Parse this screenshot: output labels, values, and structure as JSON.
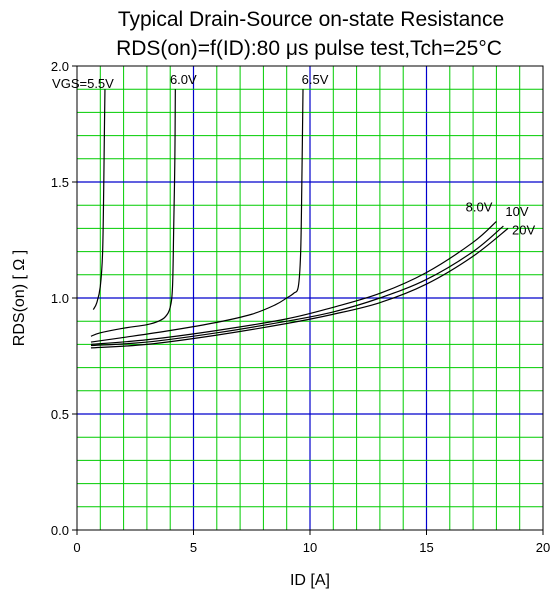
{
  "chart_data": {
    "type": "line",
    "title": "Typical Drain-Source on-state Resistance",
    "subtitle": "RDS(on)=f(ID):80 μs pulse test,Tch=25°C",
    "xlabel": "ID [A]",
    "ylabel": "RDS(on) [ Ω ]",
    "xlim": [
      0,
      20
    ],
    "ylim": [
      0.0,
      2.0
    ],
    "x_ticks": [
      "0",
      "5",
      "10",
      "15",
      "20"
    ],
    "y_ticks": [
      "0.0",
      "0.5",
      "1.0",
      "1.5",
      "2.0"
    ],
    "grid": true,
    "colors": {
      "minor_grid": "#00cc00",
      "major_grid": "#0000cc",
      "curve": "#000000",
      "axis": "#000000"
    },
    "series": [
      {
        "name": "VGS=5.5V",
        "x": [
          0.7,
          0.85,
          1.0,
          1.1,
          1.15,
          1.18,
          1.2
        ],
        "y": [
          0.95,
          0.98,
          1.05,
          1.2,
          1.5,
          1.75,
          1.9
        ]
      },
      {
        "name": "6.0V",
        "x": [
          0.6,
          1.0,
          2.0,
          3.0,
          3.5,
          3.8,
          4.0,
          4.1,
          4.15,
          4.2,
          4.22
        ],
        "y": [
          0.835,
          0.85,
          0.87,
          0.885,
          0.9,
          0.92,
          0.96,
          1.05,
          1.3,
          1.6,
          1.9
        ]
      },
      {
        "name": "6.5V",
        "x": [
          0.6,
          2.0,
          4.0,
          6.0,
          7.5,
          8.5,
          9.0,
          9.3,
          9.5,
          9.6,
          9.65,
          9.7
        ],
        "y": [
          0.81,
          0.83,
          0.86,
          0.895,
          0.93,
          0.97,
          1.0,
          1.02,
          1.05,
          1.2,
          1.5,
          1.9
        ]
      },
      {
        "name": "8.0V",
        "x": [
          0.6,
          3.0,
          6.0,
          9.0,
          11.0,
          13.0,
          15.0,
          17.0,
          18.0
        ],
        "y": [
          0.8,
          0.82,
          0.86,
          0.91,
          0.96,
          1.02,
          1.11,
          1.24,
          1.33
        ]
      },
      {
        "name": "10V",
        "x": [
          0.6,
          3.0,
          6.0,
          9.0,
          11.0,
          13.0,
          15.0,
          17.0,
          18.3
        ],
        "y": [
          0.795,
          0.81,
          0.85,
          0.9,
          0.94,
          1.0,
          1.08,
          1.2,
          1.31
        ]
      },
      {
        "name": "20V",
        "x": [
          0.6,
          3.0,
          6.0,
          9.0,
          11.0,
          13.0,
          15.0,
          17.0,
          18.5
        ],
        "y": [
          0.785,
          0.8,
          0.84,
          0.89,
          0.93,
          0.98,
          1.06,
          1.18,
          1.3
        ]
      }
    ]
  }
}
